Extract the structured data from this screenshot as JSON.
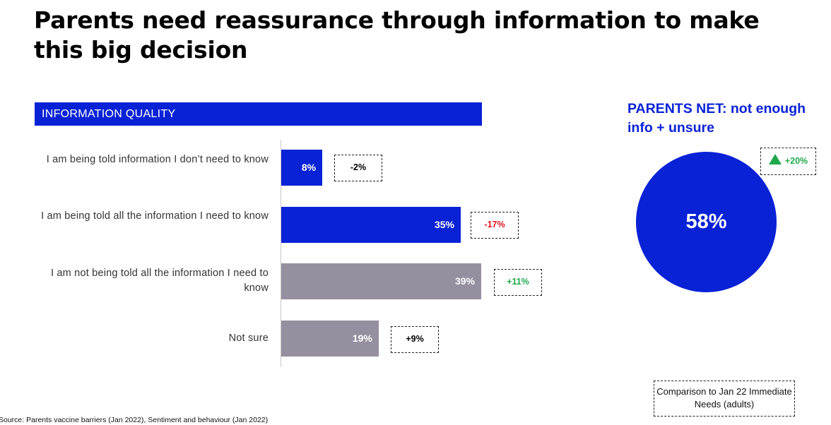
{
  "title": "Parents need reassurance through information to make this big decision",
  "section_header": "INFORMATION QUALITY",
  "chart_data": {
    "type": "bar",
    "orientation": "horizontal",
    "categories": [
      "I am being told information I don’t need to know",
      "I am being told all the information I need to know",
      "I am not being told all the information I need to know",
      "Not sure"
    ],
    "values": [
      8,
      35,
      39,
      19
    ],
    "value_labels": [
      "8%",
      "35%",
      "39%",
      "19%"
    ],
    "changes": [
      "-2%",
      "-17%",
      "+11%",
      "+9%"
    ],
    "change_colors": [
      "#000000",
      "#e0141e",
      "#1ea84a",
      "#000000"
    ],
    "bar_colors": [
      "#0a22d6",
      "#0a22d6",
      "#968f9f",
      "#968f9f"
    ],
    "xlim": [
      0,
      39
    ]
  },
  "net": {
    "title": "PARENTS NET: not enough info + unsure",
    "value": "58%",
    "change": "+20%",
    "change_icon": "up-triangle-icon",
    "change_color": "#1ea84a",
    "circle_color": "#0a22d6"
  },
  "comparison_note": "Comparison to Jan 22 Immediate Needs (adults)",
  "source": "Source: Parents vaccine barriers (Jan 2022), Sentiment and behaviour (Jan 2022)"
}
